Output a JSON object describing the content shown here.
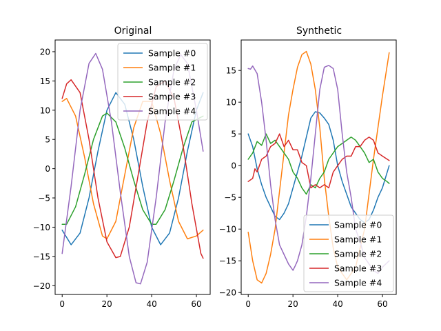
{
  "chart_data": [
    {
      "type": "line",
      "title": "Original",
      "xlim": [
        -3.15,
        66.15
      ],
      "ylim": [
        -21.5,
        22.0
      ],
      "xticks": [
        0,
        20,
        40,
        60
      ],
      "yticks": [
        -20,
        -15,
        -10,
        -5,
        0,
        5,
        10,
        15,
        20
      ],
      "legend": "top-right",
      "series": [
        {
          "name": "Sample #0",
          "color": "#1f77b4",
          "x": [
            0,
            4,
            8,
            12,
            16,
            20,
            24,
            28,
            32,
            36,
            40,
            44,
            48,
            52,
            56,
            60,
            63
          ],
          "y": [
            -10.5,
            -13.0,
            -11.0,
            -5.0,
            3.0,
            10.0,
            13.0,
            11.0,
            5.0,
            -3.0,
            -10.0,
            -13.0,
            -11.0,
            -5.0,
            3.0,
            10.0,
            13.0
          ]
        },
        {
          "name": "Sample #1",
          "color": "#ff7f0e",
          "x": [
            0,
            2,
            6,
            10,
            14,
            18,
            20,
            24,
            28,
            32,
            36,
            40,
            44,
            48,
            52,
            56,
            60,
            63
          ],
          "y": [
            11.5,
            12.0,
            9.0,
            2.0,
            -6.0,
            -11.5,
            -12.0,
            -9.0,
            -1.0,
            7.0,
            11.5,
            11.5,
            6.0,
            -2.0,
            -9.0,
            -12.0,
            -11.5,
            -10.5
          ]
        },
        {
          "name": "Sample #2",
          "color": "#2ca02c",
          "x": [
            0,
            2,
            6,
            10,
            14,
            18,
            20,
            24,
            28,
            32,
            36,
            40,
            42,
            46,
            50,
            54,
            58,
            63
          ],
          "y": [
            -9.5,
            -9.5,
            -6.5,
            -1.0,
            5.0,
            9.0,
            9.5,
            8.0,
            3.5,
            -2.0,
            -7.0,
            -9.5,
            -9.5,
            -7.0,
            -2.0,
            3.5,
            8.0,
            9.0
          ]
        },
        {
          "name": "Sample #3",
          "color": "#d62728",
          "x": [
            0,
            2,
            4,
            8,
            12,
            16,
            20,
            24,
            26,
            30,
            34,
            38,
            42,
            46,
            50,
            54,
            58,
            62,
            63
          ],
          "y": [
            12.0,
            14.5,
            15.2,
            13.0,
            5.0,
            -5.0,
            -12.5,
            -15.2,
            -15.0,
            -10.0,
            -1.0,
            8.0,
            14.0,
            15.0,
            12.0,
            4.0,
            -6.0,
            -14.5,
            -15.3
          ]
        },
        {
          "name": "Sample #4",
          "color": "#9467bd",
          "x": [
            0,
            4,
            8,
            12,
            15,
            18,
            22,
            26,
            30,
            33,
            35,
            38,
            42,
            46,
            50,
            53,
            56,
            60,
            63
          ],
          "y": [
            -14.5,
            -3.0,
            10.0,
            18.0,
            19.7,
            17.0,
            8.0,
            -4.0,
            -15.0,
            -19.5,
            -19.7,
            -16.0,
            -5.0,
            8.0,
            17.0,
            19.5,
            18.0,
            10.0,
            3.0
          ]
        }
      ]
    },
    {
      "type": "line",
      "title": "Synthetic",
      "xlim": [
        -3.15,
        66.15
      ],
      "ylim": [
        -20.3,
        19.8
      ],
      "xticks": [
        0,
        20,
        40,
        60
      ],
      "yticks": [
        -20,
        -15,
        -10,
        -5,
        0,
        5,
        10,
        15
      ],
      "legend": "bottom-right",
      "series": [
        {
          "name": "Sample #0",
          "color": "#1f77b4",
          "x": [
            0,
            2,
            4,
            6,
            8,
            10,
            12,
            14,
            16,
            18,
            20,
            22,
            24,
            26,
            28,
            30,
            32,
            34,
            36,
            38,
            40,
            42,
            44,
            46,
            48,
            50,
            52,
            54,
            56,
            58,
            60,
            63
          ],
          "y": [
            5.0,
            3.0,
            -0.5,
            -3.0,
            -5.0,
            -6.5,
            -8.0,
            -8.5,
            -7.5,
            -6.0,
            -3.5,
            -1.0,
            1.5,
            4.5,
            7.5,
            8.5,
            8.3,
            7.5,
            6.5,
            4.0,
            0.0,
            -2.5,
            -4.5,
            -6.5,
            -7.5,
            -8.5,
            -9.0,
            -8.5,
            -7.0,
            -5.0,
            -3.5,
            0.0
          ]
        },
        {
          "name": "Sample #1",
          "color": "#ff7f0e",
          "x": [
            0,
            2,
            4,
            6,
            8,
            10,
            12,
            14,
            16,
            18,
            20,
            22,
            24,
            26,
            28,
            30,
            32,
            34,
            36,
            38,
            40,
            44,
            48,
            52,
            56,
            60,
            63
          ],
          "y": [
            -10.5,
            -15.0,
            -18.0,
            -18.5,
            -17.0,
            -14.0,
            -10.0,
            -4.0,
            2.0,
            8.0,
            12.0,
            15.5,
            17.5,
            18.0,
            16.0,
            12.0,
            6.0,
            -2.0,
            -8.0,
            -13.0,
            -16.0,
            -18.0,
            -16.0,
            -10.0,
            1.0,
            11.0,
            17.8
          ]
        },
        {
          "name": "Sample #2",
          "color": "#2ca02c",
          "x": [
            0,
            2,
            4,
            6,
            8,
            10,
            12,
            14,
            16,
            18,
            20,
            22,
            24,
            26,
            28,
            30,
            32,
            34,
            36,
            38,
            40,
            42,
            44,
            46,
            48,
            50,
            52,
            54,
            56,
            58,
            60,
            62,
            63
          ],
          "y": [
            1.0,
            2.0,
            3.8,
            3.2,
            5.0,
            3.5,
            4.0,
            3.0,
            2.0,
            1.0,
            -1.0,
            -2.0,
            -3.5,
            -4.5,
            -3.0,
            -3.5,
            -2.0,
            -1.0,
            1.0,
            2.0,
            3.0,
            3.5,
            4.0,
            4.5,
            4.0,
            3.0,
            2.0,
            0.5,
            1.0,
            -1.0,
            -2.0,
            -2.5,
            -2.8
          ]
        },
        {
          "name": "Sample #3",
          "color": "#d62728",
          "x": [
            0,
            2,
            3,
            4,
            6,
            8,
            10,
            12,
            14,
            16,
            18,
            20,
            22,
            24,
            26,
            28,
            30,
            32,
            34,
            36,
            38,
            40,
            42,
            44,
            46,
            48,
            50,
            52,
            54,
            56,
            58,
            60,
            63
          ],
          "y": [
            -2.5,
            -2.0,
            -0.5,
            -1.0,
            1.0,
            1.5,
            3.0,
            3.5,
            5.0,
            3.0,
            4.0,
            2.5,
            2.5,
            0.5,
            0.0,
            -3.5,
            -3.0,
            -3.5,
            -3.0,
            -3.5,
            -1.0,
            0.0,
            1.0,
            1.5,
            1.5,
            3.0,
            3.0,
            4.0,
            4.5,
            4.0,
            2.0,
            1.5,
            0.8
          ]
        },
        {
          "name": "Sample #4",
          "color": "#9467bd",
          "x": [
            0,
            1,
            2,
            4,
            6,
            8,
            10,
            12,
            14,
            16,
            18,
            20,
            21,
            22,
            24,
            26,
            28,
            30,
            32,
            34,
            36,
            38,
            40,
            42,
            44,
            46,
            48,
            50,
            52,
            54,
            56,
            58,
            60,
            63
          ],
          "y": [
            15.3,
            15.2,
            15.7,
            14.5,
            10.0,
            4.0,
            -3.0,
            -8.5,
            -12.5,
            -14.0,
            -15.5,
            -16.5,
            -15.8,
            -15.0,
            -12.5,
            -8.0,
            -2.0,
            5.0,
            12.0,
            15.5,
            15.8,
            15.3,
            12.0,
            5.0,
            -1.0,
            -5.0,
            -10.0,
            -12.0,
            -14.5,
            -15.5,
            -16.5,
            -17.0,
            -16.0,
            -15.0
          ]
        }
      ]
    }
  ]
}
